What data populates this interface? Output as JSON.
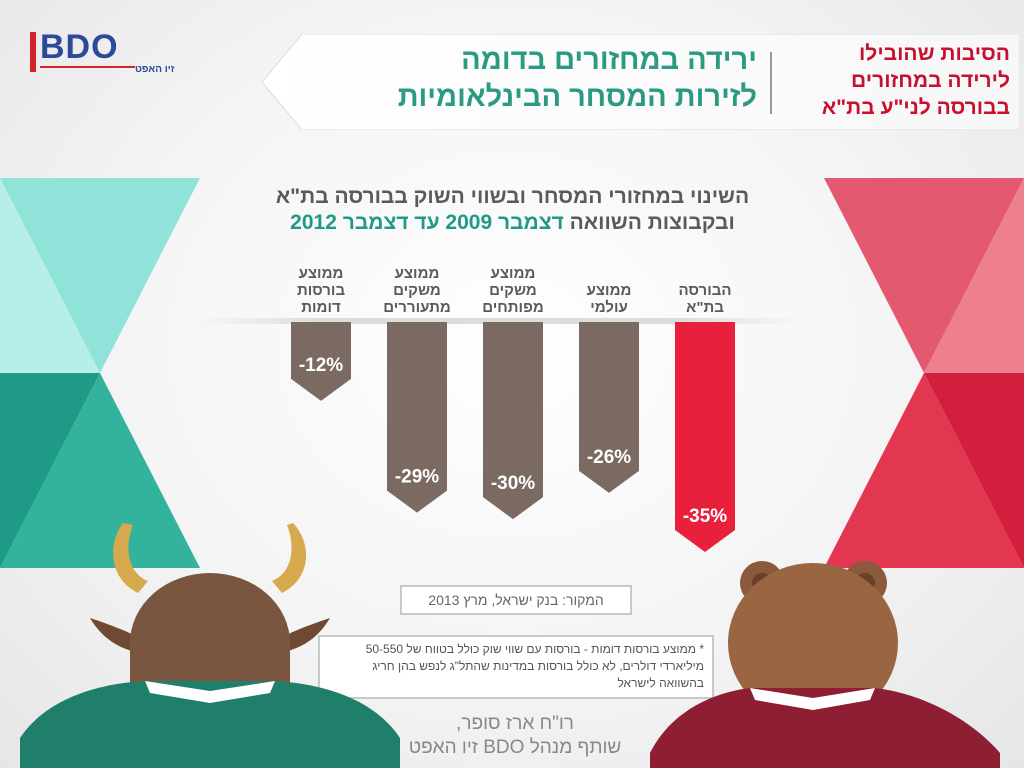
{
  "logo": {
    "brand": "BDO",
    "subtitle": "זיו האפט"
  },
  "header": {
    "side_title": [
      "הסיבות שהובילו",
      "לירידה במחזורים",
      "בבורסה לני\"ע בת\"א"
    ],
    "main_title": [
      "ירידה במחזורים בדומה",
      "לזירות המסחר הבינלאומיות"
    ]
  },
  "chart_heading": {
    "line1": "השינוי במחזורי המסחר ובשווי השוק בבורסה בת\"א",
    "line2_prefix": "ובקבוצות השוואה",
    "line2_highlight": "דצמבר 2009 עד דצמבר 2012"
  },
  "chart_data": {
    "type": "bar",
    "categories": [
      [
        "הבורסה",
        "בת\"א"
      ],
      [
        "ממוצע",
        "עולמי"
      ],
      [
        "ממוצע",
        "משקים",
        "מפותחים"
      ],
      [
        "ממוצע",
        "משקים",
        "מתעוררים"
      ],
      [
        "ממוצע",
        "בורסות",
        "דומות"
      ]
    ],
    "values": [
      -35,
      -26,
      -30,
      -29,
      -12
    ],
    "value_labels": [
      "-35%",
      "-26%",
      "-30%",
      "-29%",
      "-12%"
    ],
    "colors": [
      "#e8203c",
      "#7a6a62",
      "#7a6a62",
      "#7a6a62",
      "#7a6a62"
    ],
    "ylim": [
      -35,
      0
    ]
  },
  "source": "המקור: בנק ישראל, מרץ 2013",
  "footnote": "* ממוצע בורסות דומות - בורסות עם שווי שוק כולל בטווח של 50-550 מיליארדי דולרים, לא כולל בורסות במדינות שהתל\"ג לנפש בהן חריג בהשוואה לישראל",
  "author": {
    "name": "רו\"ח ארז סופר,",
    "title": "שותף מנהל BDO זיו האפט"
  },
  "colors": {
    "teal": "#2a9a82",
    "red": "#c8102e",
    "bar_gray": "#7a6a62",
    "bar_red": "#e8203c"
  }
}
